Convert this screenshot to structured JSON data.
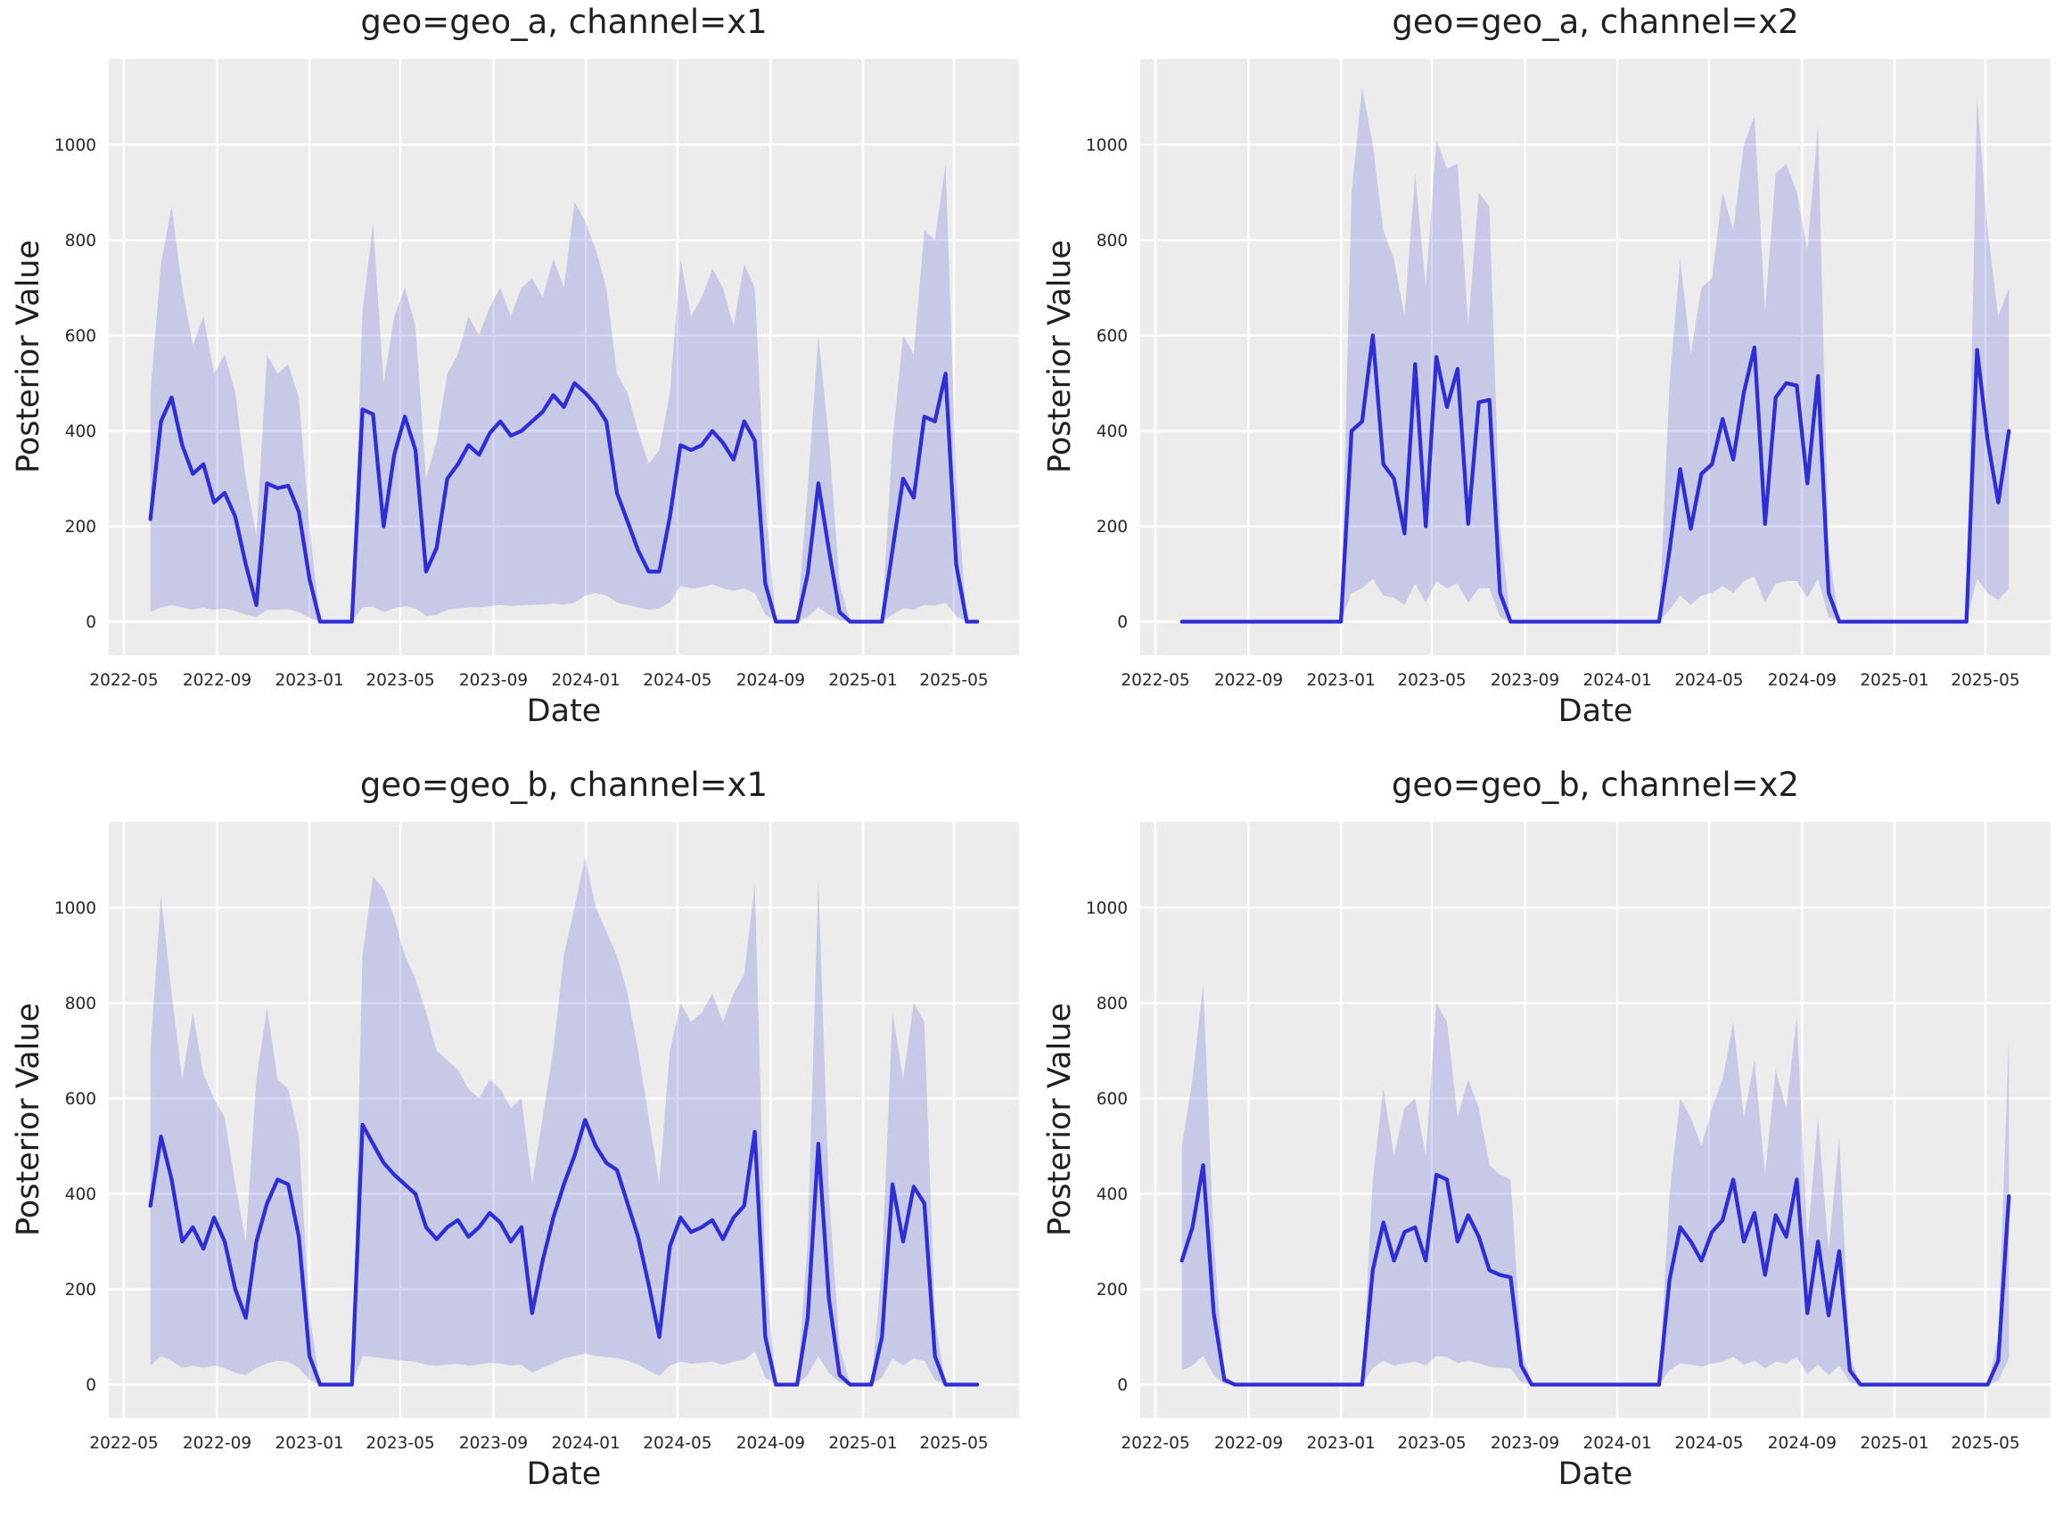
{
  "style": {
    "figure_bg": "#ffffff",
    "axes_bg": "#ececec",
    "grid_color": "#ffffff",
    "line_color": "#2e2ed8",
    "band_color": "rgba(72,72,214,0.22)",
    "text_color": "#262626"
  },
  "chart_data": {
    "type": "line",
    "description": "Posterior value time series per geo and channel, median line with credible-interval band",
    "axis": {
      "xlabel": "Date",
      "ylabel": "Posterior Value",
      "yticks": [
        0,
        200,
        400,
        600,
        800,
        1000
      ],
      "ylim": [
        -70,
        1180
      ],
      "x_min": "2022-04-11",
      "x_max": "2025-07-26",
      "xtick_labels": [
        "2022-05",
        "2022-09",
        "2023-01",
        "2023-05",
        "2023-09",
        "2024-01",
        "2024-05",
        "2024-09",
        "2025-01",
        "2025-05"
      ],
      "grid": true
    },
    "subplots": [
      {
        "title": "geo=geo_a, channel=x1",
        "geo": "geo_a",
        "channel": "x1",
        "x_start": "2022-06-05",
        "x_step_days": 14,
        "mean": [
          215,
          420,
          470,
          370,
          310,
          330,
          250,
          270,
          220,
          120,
          35,
          290,
          280,
          285,
          230,
          90,
          0,
          0,
          0,
          0,
          445,
          435,
          200,
          350,
          430,
          360,
          105,
          155,
          300,
          330,
          370,
          350,
          395,
          420,
          390,
          400,
          420,
          440,
          475,
          450,
          500,
          480,
          455,
          420,
          270,
          210,
          150,
          105,
          105,
          220,
          370,
          360,
          370,
          400,
          375,
          340,
          420,
          380,
          80,
          0,
          0,
          0,
          100,
          290,
          150,
          20,
          0,
          0,
          0,
          0,
          150,
          300,
          260,
          430,
          420,
          520,
          120,
          0,
          0
        ],
        "lower": [
          20,
          30,
          35,
          30,
          25,
          30,
          25,
          28,
          22,
          15,
          10,
          25,
          25,
          26,
          20,
          8,
          0,
          0,
          0,
          0,
          30,
          32,
          20,
          28,
          33,
          28,
          12,
          15,
          25,
          28,
          30,
          30,
          33,
          35,
          33,
          34,
          35,
          36,
          38,
          36,
          40,
          55,
          60,
          55,
          40,
          35,
          30,
          25,
          28,
          40,
          75,
          70,
          72,
          78,
          70,
          65,
          70,
          60,
          15,
          0,
          0,
          0,
          10,
          30,
          15,
          3,
          0,
          0,
          0,
          0,
          15,
          28,
          25,
          35,
          34,
          40,
          12,
          0,
          0
        ],
        "upper": [
          480,
          750,
          870,
          700,
          580,
          640,
          520,
          560,
          480,
          300,
          180,
          560,
          520,
          540,
          470,
          200,
          0,
          0,
          0,
          0,
          650,
          835,
          500,
          640,
          700,
          620,
          300,
          380,
          520,
          560,
          640,
          600,
          660,
          700,
          640,
          700,
          720,
          680,
          760,
          700,
          880,
          840,
          780,
          700,
          520,
          480,
          400,
          330,
          360,
          480,
          760,
          640,
          680,
          740,
          700,
          620,
          750,
          700,
          250,
          0,
          0,
          0,
          280,
          600,
          380,
          80,
          0,
          0,
          0,
          0,
          380,
          600,
          560,
          820,
          800,
          960,
          300,
          0,
          0
        ]
      },
      {
        "title": "geo=geo_a, channel=x2",
        "geo": "geo_a",
        "channel": "x2",
        "x_start": "2022-06-05",
        "x_step_days": 14,
        "mean": [
          0,
          0,
          0,
          0,
          0,
          0,
          0,
          0,
          0,
          0,
          0,
          0,
          0,
          0,
          0,
          0,
          400,
          420,
          600,
          330,
          300,
          185,
          540,
          200,
          555,
          450,
          530,
          205,
          460,
          465,
          60,
          0,
          0,
          0,
          0,
          0,
          0,
          0,
          0,
          0,
          0,
          0,
          0,
          0,
          0,
          0,
          150,
          320,
          195,
          310,
          330,
          425,
          340,
          480,
          575,
          205,
          470,
          500,
          495,
          290,
          515,
          60,
          0,
          0,
          0,
          0,
          0,
          0,
          0,
          0,
          0,
          0,
          0,
          0,
          0,
          570,
          380,
          250,
          400
        ],
        "lower": [
          0,
          0,
          0,
          0,
          0,
          0,
          0,
          0,
          0,
          0,
          0,
          0,
          0,
          0,
          0,
          0,
          60,
          70,
          90,
          55,
          50,
          35,
          80,
          40,
          85,
          70,
          80,
          40,
          70,
          70,
          10,
          0,
          0,
          0,
          0,
          0,
          0,
          0,
          0,
          0,
          0,
          0,
          0,
          0,
          0,
          0,
          25,
          55,
          35,
          55,
          60,
          75,
          60,
          85,
          95,
          40,
          80,
          85,
          85,
          50,
          90,
          10,
          0,
          0,
          0,
          0,
          0,
          0,
          0,
          0,
          0,
          0,
          0,
          0,
          0,
          90,
          60,
          45,
          70
        ],
        "upper": [
          0,
          0,
          0,
          0,
          0,
          0,
          0,
          0,
          0,
          0,
          0,
          0,
          0,
          0,
          0,
          0,
          900,
          1120,
          1000,
          820,
          760,
          640,
          940,
          700,
          1010,
          950,
          960,
          620,
          900,
          870,
          200,
          0,
          0,
          0,
          0,
          0,
          0,
          0,
          0,
          0,
          0,
          0,
          0,
          0,
          0,
          0,
          500,
          760,
          560,
          700,
          720,
          900,
          820,
          1000,
          1060,
          650,
          940,
          960,
          900,
          780,
          1040,
          150,
          0,
          0,
          0,
          0,
          0,
          0,
          0,
          0,
          0,
          0,
          0,
          0,
          0,
          1100,
          820,
          640,
          700
        ]
      },
      {
        "title": "geo=geo_b, channel=x1",
        "geo": "geo_b",
        "channel": "x1",
        "x_start": "2022-06-05",
        "x_step_days": 14,
        "mean": [
          375,
          520,
          430,
          300,
          330,
          285,
          350,
          300,
          200,
          140,
          300,
          380,
          430,
          420,
          310,
          60,
          0,
          0,
          0,
          0,
          545,
          505,
          465,
          440,
          420,
          400,
          330,
          305,
          330,
          345,
          310,
          330,
          360,
          340,
          300,
          330,
          150,
          260,
          350,
          420,
          480,
          555,
          500,
          465,
          450,
          380,
          310,
          210,
          100,
          290,
          350,
          320,
          330,
          345,
          305,
          350,
          375,
          530,
          100,
          0,
          0,
          0,
          140,
          505,
          180,
          20,
          0,
          0,
          0,
          100,
          420,
          300,
          415,
          380,
          60,
          0,
          0,
          0,
          0
        ],
        "lower": [
          40,
          60,
          50,
          35,
          40,
          35,
          40,
          35,
          25,
          20,
          35,
          45,
          50,
          48,
          35,
          10,
          0,
          0,
          0,
          0,
          60,
          58,
          55,
          52,
          50,
          48,
          42,
          40,
          42,
          44,
          40,
          42,
          46,
          44,
          40,
          42,
          25,
          35,
          45,
          55,
          60,
          65,
          60,
          58,
          56,
          50,
          42,
          30,
          18,
          40,
          48,
          44,
          46,
          48,
          42,
          48,
          52,
          70,
          15,
          0,
          0,
          0,
          20,
          60,
          25,
          5,
          0,
          0,
          0,
          15,
          55,
          40,
          55,
          50,
          10,
          0,
          0,
          0,
          0
        ],
        "upper": [
          700,
          1025,
          820,
          640,
          780,
          650,
          600,
          560,
          420,
          300,
          640,
          790,
          640,
          620,
          520,
          150,
          0,
          0,
          0,
          0,
          900,
          1065,
          1040,
          980,
          900,
          850,
          780,
          700,
          680,
          660,
          620,
          600,
          640,
          620,
          580,
          600,
          420,
          560,
          700,
          900,
          1000,
          1105,
          1000,
          950,
          900,
          820,
          700,
          560,
          420,
          700,
          800,
          760,
          780,
          820,
          760,
          820,
          860,
          1050,
          250,
          0,
          0,
          0,
          300,
          1060,
          400,
          80,
          0,
          0,
          0,
          250,
          780,
          640,
          800,
          760,
          140,
          0,
          0,
          0,
          0
        ]
      },
      {
        "title": "geo=geo_b, channel=x2",
        "geo": "geo_b",
        "channel": "x2",
        "x_start": "2022-06-05",
        "x_step_days": 14,
        "mean": [
          260,
          330,
          460,
          150,
          10,
          0,
          0,
          0,
          0,
          0,
          0,
          0,
          0,
          0,
          0,
          0,
          0,
          0,
          240,
          340,
          260,
          320,
          330,
          260,
          440,
          430,
          300,
          355,
          310,
          240,
          230,
          225,
          40,
          0,
          0,
          0,
          0,
          0,
          0,
          0,
          0,
          0,
          0,
          0,
          0,
          0,
          220,
          330,
          300,
          260,
          320,
          345,
          430,
          300,
          360,
          230,
          355,
          310,
          430,
          150,
          300,
          145,
          280,
          30,
          0,
          0,
          0,
          0,
          0,
          0,
          0,
          0,
          0,
          0,
          0,
          0,
          0,
          50,
          395
        ],
        "lower": [
          30,
          40,
          60,
          20,
          0,
          0,
          0,
          0,
          0,
          0,
          0,
          0,
          0,
          0,
          0,
          0,
          0,
          0,
          35,
          50,
          40,
          45,
          48,
          40,
          60,
          58,
          45,
          50,
          45,
          38,
          35,
          34,
          5,
          0,
          0,
          0,
          0,
          0,
          0,
          0,
          0,
          0,
          0,
          0,
          0,
          0,
          30,
          45,
          42,
          38,
          44,
          48,
          58,
          42,
          50,
          34,
          48,
          44,
          58,
          22,
          42,
          20,
          40,
          5,
          0,
          0,
          0,
          0,
          0,
          0,
          0,
          0,
          0,
          0,
          0,
          0,
          0,
          8,
          55
        ],
        "upper": [
          500,
          640,
          840,
          300,
          20,
          0,
          0,
          0,
          0,
          0,
          0,
          0,
          0,
          0,
          0,
          0,
          0,
          0,
          430,
          620,
          480,
          580,
          600,
          480,
          800,
          760,
          560,
          640,
          580,
          460,
          440,
          430,
          80,
          0,
          0,
          0,
          0,
          0,
          0,
          0,
          0,
          0,
          0,
          0,
          0,
          0,
          400,
          600,
          560,
          500,
          580,
          640,
          760,
          560,
          680,
          440,
          660,
          580,
          770,
          300,
          560,
          280,
          520,
          60,
          0,
          0,
          0,
          0,
          0,
          0,
          0,
          0,
          0,
          0,
          0,
          0,
          0,
          100,
          730
        ]
      }
    ]
  }
}
